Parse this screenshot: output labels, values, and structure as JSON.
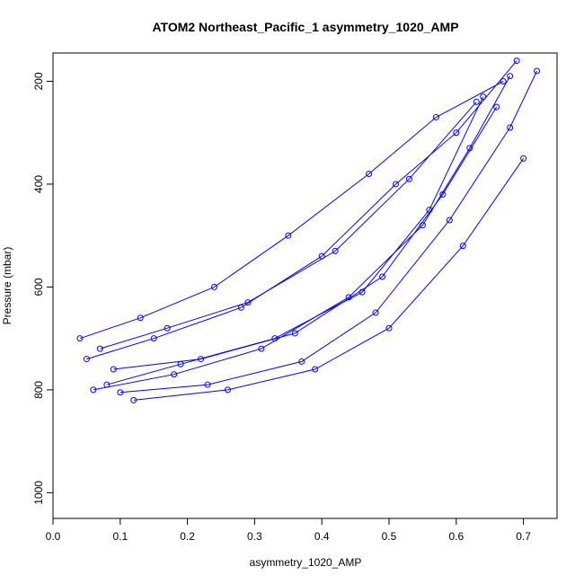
{
  "chart_data": {
    "type": "line",
    "title": "ATOM2 Northeast_Pacific_1 asymmetry_1020_AMP",
    "xlabel": "asymmetry_1020_AMP",
    "ylabel": "Pressure (mbar)",
    "xlim": [
      0.0,
      0.75
    ],
    "ylim": [
      1050,
      145
    ],
    "y_inverted": true,
    "x_ticks": [
      "0.0",
      "0.1",
      "0.2",
      "0.3",
      "0.4",
      "0.5",
      "0.6",
      "0.7"
    ],
    "y_ticks": [
      "200",
      "400",
      "600",
      "800",
      "1000"
    ],
    "grid": false,
    "marker": "open-circle",
    "color": "#0000ff",
    "series": [
      {
        "x": [
          0.06,
          0.18,
          0.31,
          0.44,
          0.55,
          0.62,
          0.68
        ],
        "y": [
          800,
          770,
          720,
          620,
          480,
          330,
          190
        ]
      },
      {
        "x": [
          0.09,
          0.22,
          0.36,
          0.49,
          0.58,
          0.66
        ],
        "y": [
          760,
          740,
          690,
          580,
          420,
          250
        ]
      },
      {
        "x": [
          0.05,
          0.15,
          0.28,
          0.4,
          0.51,
          0.6,
          0.69
        ],
        "y": [
          740,
          700,
          640,
          540,
          400,
          300,
          160
        ]
      },
      {
        "x": [
          0.12,
          0.26,
          0.39,
          0.5,
          0.61,
          0.7
        ],
        "y": [
          820,
          800,
          760,
          680,
          520,
          350
        ]
      },
      {
        "x": [
          0.04,
          0.13,
          0.24,
          0.35,
          0.47,
          0.57,
          0.67
        ],
        "y": [
          700,
          660,
          600,
          500,
          380,
          270,
          200
        ]
      },
      {
        "x": [
          0.08,
          0.19,
          0.33,
          0.46,
          0.56,
          0.64
        ],
        "y": [
          790,
          750,
          700,
          610,
          450,
          230
        ]
      },
      {
        "x": [
          0.1,
          0.23,
          0.37,
          0.48,
          0.59,
          0.68,
          0.72
        ],
        "y": [
          805,
          790,
          745,
          650,
          470,
          290,
          180
        ]
      },
      {
        "x": [
          0.07,
          0.17,
          0.29,
          0.42,
          0.53,
          0.63
        ],
        "y": [
          720,
          680,
          630,
          530,
          390,
          240
        ]
      }
    ]
  }
}
